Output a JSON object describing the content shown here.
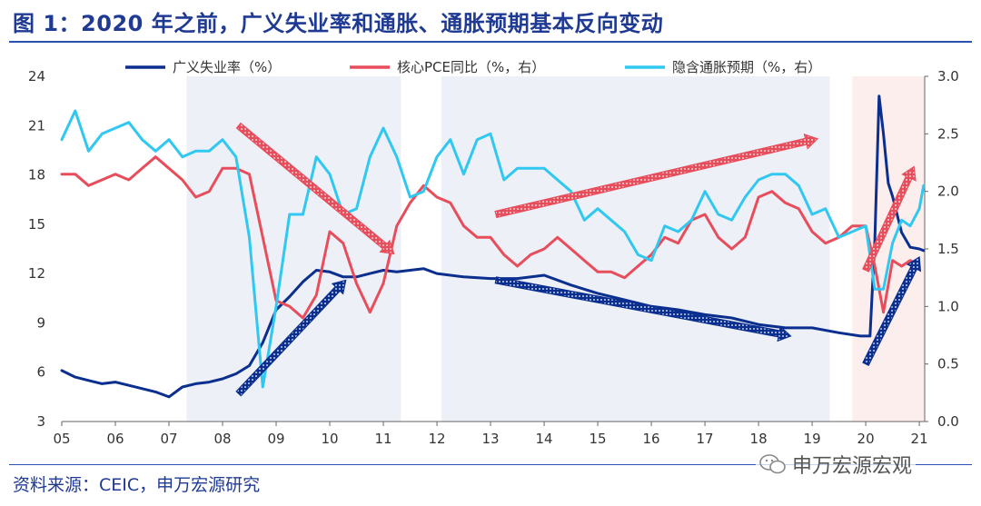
{
  "header": {
    "title": "图 1：2020 年之前，广义失业率和通胀、通胀预期基本反向变动"
  },
  "footer": {
    "source": "资料来源：CEIC，申万宏源研究",
    "watermark": "申万宏源宏观"
  },
  "colors": {
    "unemployment": "#0b2f8f",
    "core_pce": "#e84d5b",
    "inflation_expect": "#30c8f0",
    "shade_blue": "#eef0f8",
    "shade_pink": "#fdeeee",
    "arrow_red": "#e84d5b",
    "arrow_blue": "#0b2f8f"
  },
  "icons": {
    "watermark": "wechat-icon"
  },
  "chart_data": {
    "type": "line",
    "xticks": [
      "05",
      "06",
      "07",
      "08",
      "09",
      "10",
      "11",
      "12",
      "13",
      "14",
      "15",
      "16",
      "17",
      "18",
      "19",
      "20",
      "21"
    ],
    "xlim": [
      2005.0,
      2021.1
    ],
    "ylim_left": [
      3,
      24
    ],
    "yticks_left": [
      "3",
      "6",
      "9",
      "12",
      "15",
      "18",
      "21",
      "24"
    ],
    "ylim_right": [
      0.0,
      3.0
    ],
    "yticks_right": [
      "0.0",
      "0.5",
      "1.0",
      "1.5",
      "2.0",
      "2.5",
      "3.0"
    ],
    "legend_position": "top",
    "grid": false,
    "shaded_periods": [
      {
        "from": 2007.33,
        "to": 2011.33,
        "color": "blue"
      },
      {
        "from": 2012.08,
        "to": 2019.33,
        "color": "blue"
      },
      {
        "from": 2019.75,
        "to": 2021.1,
        "color": "pink"
      }
    ],
    "series": [
      {
        "name": "广义失业率（%）",
        "axis": "left",
        "x": [
          2005.0,
          2005.25,
          2005.5,
          2005.75,
          2006.0,
          2006.25,
          2006.5,
          2006.75,
          2007.0,
          2007.25,
          2007.5,
          2007.75,
          2008.0,
          2008.25,
          2008.5,
          2008.75,
          2009.0,
          2009.25,
          2009.5,
          2009.75,
          2010.0,
          2010.25,
          2010.5,
          2010.75,
          2011.0,
          2011.25,
          2011.5,
          2011.75,
          2012.0,
          2012.5,
          2013.0,
          2013.5,
          2014.0,
          2014.5,
          2015.0,
          2015.5,
          2016.0,
          2016.5,
          2017.0,
          2017.5,
          2018.0,
          2018.5,
          2019.0,
          2019.5,
          2019.9,
          2020.08,
          2020.17,
          2020.25,
          2020.33,
          2020.42,
          2020.5,
          2020.67,
          2020.83,
          2021.0,
          2021.08
        ],
        "values": [
          6.1,
          5.7,
          5.5,
          5.3,
          5.4,
          5.2,
          5.0,
          4.8,
          4.5,
          5.1,
          5.3,
          5.4,
          5.6,
          5.9,
          6.4,
          7.8,
          9.8,
          10.6,
          11.5,
          12.2,
          12.1,
          11.8,
          11.8,
          12.0,
          12.2,
          12.1,
          12.2,
          12.3,
          12.0,
          11.8,
          11.7,
          11.7,
          11.9,
          11.3,
          10.8,
          10.4,
          10.0,
          9.8,
          9.5,
          9.3,
          8.9,
          8.7,
          8.7,
          8.4,
          8.2,
          8.2,
          14.0,
          22.8,
          20.5,
          17.5,
          16.7,
          14.5,
          13.6,
          13.5,
          13.4
        ]
      },
      {
        "name": "核心PCE同比（%，右）",
        "axis": "right",
        "x": [
          2005.0,
          2005.25,
          2005.5,
          2005.75,
          2006.0,
          2006.25,
          2006.5,
          2006.75,
          2007.0,
          2007.25,
          2007.5,
          2007.75,
          2008.0,
          2008.25,
          2008.5,
          2008.75,
          2009.0,
          2009.25,
          2009.5,
          2009.75,
          2010.0,
          2010.25,
          2010.5,
          2010.75,
          2011.0,
          2011.25,
          2011.5,
          2011.75,
          2012.0,
          2012.25,
          2012.5,
          2012.75,
          2013.0,
          2013.25,
          2013.5,
          2013.75,
          2014.0,
          2014.25,
          2014.5,
          2014.75,
          2015.0,
          2015.25,
          2015.5,
          2015.75,
          2016.0,
          2016.25,
          2016.5,
          2016.75,
          2017.0,
          2017.25,
          2017.5,
          2017.75,
          2018.0,
          2018.25,
          2018.5,
          2018.75,
          2019.0,
          2019.25,
          2019.5,
          2019.75,
          2020.0,
          2020.17,
          2020.33,
          2020.5,
          2020.67,
          2020.83,
          2021.0
        ],
        "values": [
          2.15,
          2.15,
          2.05,
          2.1,
          2.15,
          2.1,
          2.2,
          2.3,
          2.2,
          2.1,
          1.95,
          2.0,
          2.2,
          2.2,
          2.15,
          1.6,
          1.05,
          1.0,
          0.9,
          1.1,
          1.65,
          1.55,
          1.2,
          0.95,
          1.2,
          1.7,
          1.9,
          2.05,
          1.95,
          1.9,
          1.7,
          1.6,
          1.6,
          1.45,
          1.35,
          1.45,
          1.5,
          1.6,
          1.5,
          1.4,
          1.3,
          1.3,
          1.25,
          1.35,
          1.45,
          1.6,
          1.55,
          1.75,
          1.8,
          1.6,
          1.5,
          1.6,
          1.95,
          2.0,
          1.9,
          1.85,
          1.65,
          1.55,
          1.6,
          1.7,
          1.7,
          1.35,
          0.95,
          1.4,
          1.35,
          1.4,
          1.35
        ]
      },
      {
        "name": "隐含通胀预期（%，右）",
        "axis": "right",
        "x": [
          2005.0,
          2005.25,
          2005.5,
          2005.75,
          2006.0,
          2006.25,
          2006.5,
          2006.75,
          2007.0,
          2007.25,
          2007.5,
          2007.75,
          2008.0,
          2008.25,
          2008.5,
          2008.75,
          2009.0,
          2009.25,
          2009.5,
          2009.75,
          2010.0,
          2010.25,
          2010.5,
          2010.75,
          2011.0,
          2011.25,
          2011.5,
          2011.75,
          2012.0,
          2012.25,
          2012.5,
          2012.75,
          2013.0,
          2013.25,
          2013.5,
          2013.75,
          2014.0,
          2014.25,
          2014.5,
          2014.75,
          2015.0,
          2015.25,
          2015.5,
          2015.75,
          2016.0,
          2016.25,
          2016.5,
          2016.75,
          2017.0,
          2017.25,
          2017.5,
          2017.75,
          2018.0,
          2018.25,
          2018.5,
          2018.75,
          2019.0,
          2019.25,
          2019.5,
          2019.75,
          2020.0,
          2020.17,
          2020.33,
          2020.5,
          2020.67,
          2020.83,
          2021.0,
          2021.08
        ],
        "values": [
          2.45,
          2.7,
          2.35,
          2.5,
          2.55,
          2.6,
          2.45,
          2.35,
          2.45,
          2.3,
          2.35,
          2.35,
          2.45,
          2.3,
          1.6,
          0.3,
          1.0,
          1.8,
          1.8,
          2.3,
          2.15,
          1.8,
          1.85,
          2.3,
          2.55,
          2.3,
          1.95,
          2.0,
          2.3,
          2.45,
          2.15,
          2.45,
          2.5,
          2.1,
          2.2,
          2.2,
          2.2,
          2.1,
          2.0,
          1.75,
          1.85,
          1.75,
          1.65,
          1.45,
          1.4,
          1.7,
          1.65,
          1.75,
          2.0,
          1.8,
          1.75,
          1.95,
          2.1,
          2.15,
          2.15,
          2.05,
          1.8,
          1.85,
          1.6,
          1.65,
          1.7,
          1.15,
          1.15,
          1.55,
          1.75,
          1.7,
          1.85,
          2.05
        ]
      }
    ],
    "annotations": [
      {
        "shape": "arrow",
        "color": "red",
        "from": [
          2008.3,
          21.0
        ],
        "to": [
          2011.2,
          13.2
        ],
        "axis": "left"
      },
      {
        "shape": "arrow",
        "color": "blue",
        "from": [
          2008.3,
          4.7
        ],
        "to": [
          2010.3,
          11.6
        ],
        "axis": "left"
      },
      {
        "shape": "arrow",
        "color": "red",
        "from": [
          2013.1,
          15.6
        ],
        "to": [
          2019.1,
          20.2
        ],
        "axis": "left"
      },
      {
        "shape": "arrow",
        "color": "blue",
        "from": [
          2013.1,
          11.6
        ],
        "to": [
          2018.6,
          8.2
        ],
        "axis": "left"
      },
      {
        "shape": "arrow",
        "color": "red",
        "from": [
          2020.0,
          12.2
        ],
        "to": [
          2020.9,
          18.5
        ],
        "axis": "left"
      },
      {
        "shape": "arrow",
        "color": "blue",
        "from": [
          2020.0,
          6.5
        ],
        "to": [
          2021.0,
          13.0
        ],
        "axis": "left"
      }
    ]
  }
}
